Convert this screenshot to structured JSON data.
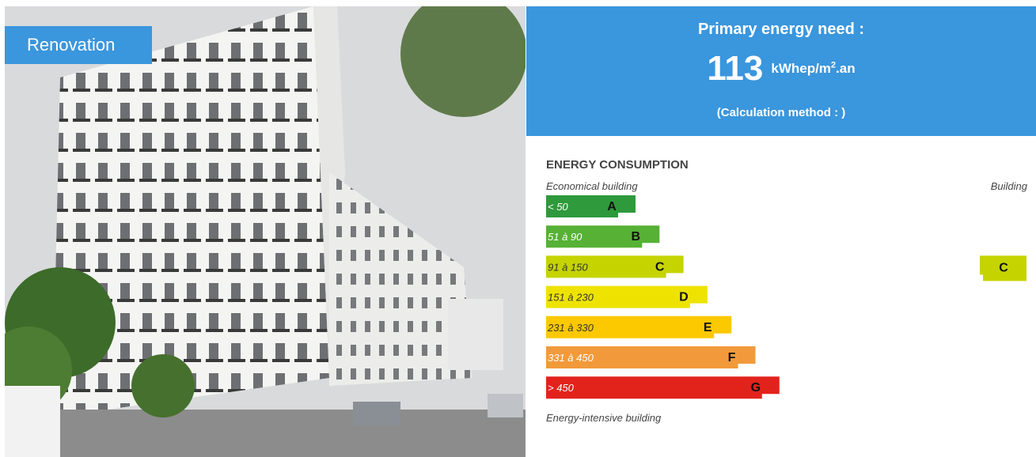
{
  "badge": "Renovation",
  "header": {
    "title": "Primary energy need :",
    "value": "113",
    "unit": "kWhep/m",
    "unit_sup": "2",
    "unit_suffix": ".an",
    "method": "(Calculation method : )"
  },
  "rating": {
    "title": "ENERGY CONSUMPTION",
    "top_label": "Economical building",
    "building_label": "Building",
    "bottom_label": "Energy-intensive building",
    "current": "C",
    "classes": [
      {
        "range": "< 50",
        "letter": "A",
        "color": "#2f9a3b"
      },
      {
        "range": "51 à 90",
        "letter": "B",
        "color": "#56b135"
      },
      {
        "range": "91 à 150",
        "letter": "C",
        "color": "#c5d400"
      },
      {
        "range": "151 à 230",
        "letter": "D",
        "color": "#eee300"
      },
      {
        "range": "231 à 330",
        "letter": "E",
        "color": "#fcc800"
      },
      {
        "range": "331 à 450",
        "letter": "F",
        "color": "#f29a3b"
      },
      {
        "range": "> 450",
        "letter": "G",
        "color": "#e2231b"
      }
    ]
  }
}
